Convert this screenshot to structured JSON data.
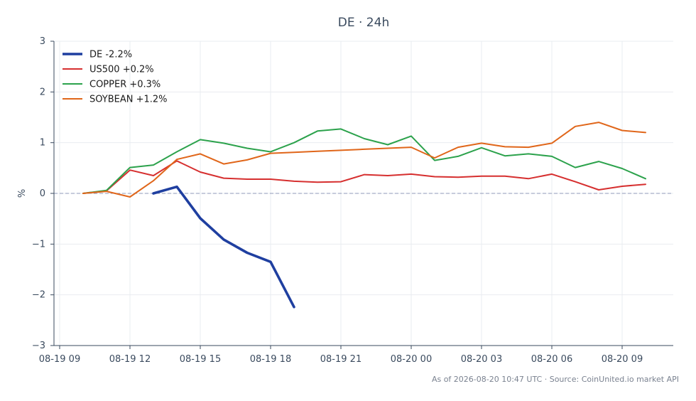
{
  "chart_data": {
    "type": "line",
    "title": "DE · 24h",
    "xlabel": "",
    "ylabel": "%",
    "ylim": [
      -3,
      3
    ],
    "yticks": [
      -3,
      -2,
      -1,
      0,
      1,
      2,
      3
    ],
    "ytick_labels": [
      "−3",
      "−2",
      "−1",
      "0",
      "1",
      "2",
      "3"
    ],
    "xticks": [
      "08-19 09",
      "08-19 12",
      "08-19 15",
      "08-19 18",
      "08-19 21",
      "08-20 00",
      "08-20 03",
      "08-20 06",
      "08-20 09"
    ],
    "x_start": "2026-08-19 09:00",
    "x_end": "2026-08-20 11:00",
    "grid": true,
    "zero_line": true,
    "legend_position": "top-left",
    "footer": "As of 2026-08-20 10:47 UTC · Source: CoinUnited.io market API",
    "series": [
      {
        "name": "DE -2.2%",
        "color": "#1f3fa0",
        "bold": true,
        "x": [
          "2026-08-19 13:00",
          "2026-08-19 14:00",
          "2026-08-19 15:00",
          "2026-08-19 16:00",
          "2026-08-19 17:00",
          "2026-08-19 18:00",
          "2026-08-19 19:00"
        ],
        "values": [
          0.0,
          0.13,
          -0.49,
          -0.91,
          -1.17,
          -1.35,
          -2.24
        ]
      },
      {
        "name": "US500 +0.2%",
        "color": "#d62f2f",
        "bold": false,
        "x": [
          "2026-08-19 10:00",
          "2026-08-19 11:00",
          "2026-08-19 12:00",
          "2026-08-19 13:00",
          "2026-08-19 14:00",
          "2026-08-19 15:00",
          "2026-08-19 16:00",
          "2026-08-19 17:00",
          "2026-08-19 18:00",
          "2026-08-19 19:00",
          "2026-08-19 20:00",
          "2026-08-19 21:00",
          "2026-08-19 22:00",
          "2026-08-19 23:00",
          "2026-08-20 00:00",
          "2026-08-20 01:00",
          "2026-08-20 02:00",
          "2026-08-20 03:00",
          "2026-08-20 04:00",
          "2026-08-20 05:00",
          "2026-08-20 06:00",
          "2026-08-20 07:00",
          "2026-08-20 08:00",
          "2026-08-20 09:00",
          "2026-08-20 10:00"
        ],
        "values": [
          0.0,
          0.05,
          0.46,
          0.35,
          0.64,
          0.42,
          0.3,
          0.28,
          0.28,
          0.24,
          0.22,
          0.23,
          0.37,
          0.35,
          0.38,
          0.33,
          0.32,
          0.34,
          0.34,
          0.29,
          0.38,
          0.23,
          0.07,
          0.14,
          0.18
        ]
      },
      {
        "name": "COPPER +0.3%",
        "color": "#2ca24c",
        "bold": false,
        "x": [
          "2026-08-19 10:00",
          "2026-08-19 11:00",
          "2026-08-19 12:00",
          "2026-08-19 13:00",
          "2026-08-19 14:00",
          "2026-08-19 15:00",
          "2026-08-19 16:00",
          "2026-08-19 17:00",
          "2026-08-19 18:00",
          "2026-08-19 19:00",
          "2026-08-19 20:00",
          "2026-08-19 21:00",
          "2026-08-19 22:00",
          "2026-08-19 23:00",
          "2026-08-20 00:00",
          "2026-08-20 01:00",
          "2026-08-20 02:00",
          "2026-08-20 03:00",
          "2026-08-20 04:00",
          "2026-08-20 05:00",
          "2026-08-20 06:00",
          "2026-08-20 07:00",
          "2026-08-20 08:00",
          "2026-08-20 09:00",
          "2026-08-20 10:00"
        ],
        "values": [
          0.0,
          0.06,
          0.51,
          0.56,
          0.82,
          1.06,
          0.99,
          0.89,
          0.82,
          1.0,
          1.23,
          1.27,
          1.08,
          0.96,
          1.13,
          0.65,
          0.73,
          0.9,
          0.74,
          0.78,
          0.73,
          0.51,
          0.63,
          0.49,
          0.29
        ]
      },
      {
        "name": "SOYBEAN +1.2%",
        "color": "#e0661a",
        "bold": false,
        "x": [
          "2026-08-19 10:00",
          "2026-08-19 11:00",
          "2026-08-19 12:00",
          "2026-08-19 13:00",
          "2026-08-19 14:00",
          "2026-08-19 15:00",
          "2026-08-19 16:00",
          "2026-08-19 17:00",
          "2026-08-19 18:00",
          "2026-08-19 19:00",
          "2026-08-19 20:00",
          "2026-08-19 21:00",
          "2026-08-19 22:00",
          "2026-08-19 23:00",
          "2026-08-20 00:00",
          "2026-08-20 01:00",
          "2026-08-20 02:00",
          "2026-08-20 03:00",
          "2026-08-20 04:00",
          "2026-08-20 05:00",
          "2026-08-20 06:00",
          "2026-08-20 07:00",
          "2026-08-20 08:00",
          "2026-08-20 09:00",
          "2026-08-20 10:00"
        ],
        "values": [
          0.0,
          0.04,
          -0.07,
          0.25,
          0.67,
          0.78,
          0.58,
          0.66,
          0.79,
          0.81,
          0.83,
          0.85,
          0.87,
          0.89,
          0.91,
          0.7,
          0.91,
          0.99,
          0.92,
          0.91,
          0.99,
          1.32,
          1.4,
          1.24,
          1.2
        ]
      }
    ]
  }
}
